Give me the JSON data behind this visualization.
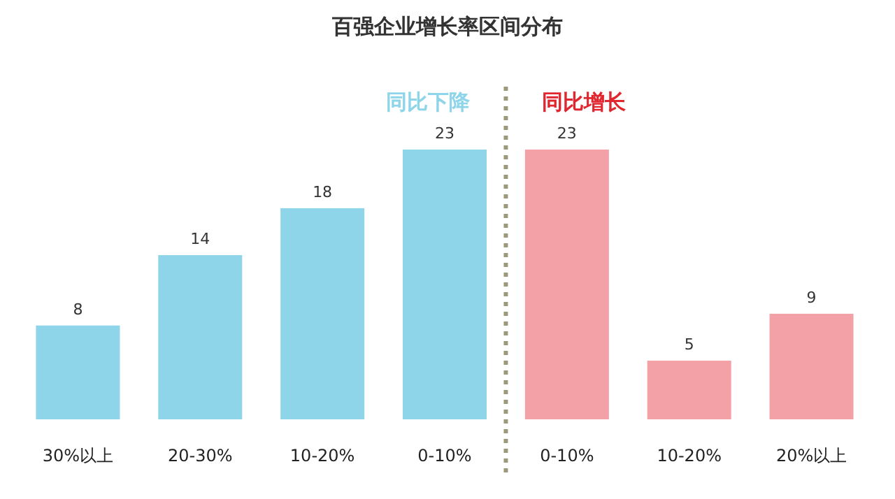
{
  "chart_data": {
    "type": "bar",
    "title": "百强企业增长率区间分布",
    "categories": [
      "30%以上",
      "20-30%",
      "10-20%",
      "0-10%",
      "0-10%",
      "10-20%",
      "20%以上"
    ],
    "series": [
      {
        "name": "同比下降",
        "color": "#8fd5ea",
        "values": [
          8,
          14,
          18,
          23,
          null,
          null,
          null
        ]
      },
      {
        "name": "同比增长",
        "color": "#f3a1a6",
        "values": [
          null,
          null,
          null,
          null,
          23,
          5,
          9
        ]
      }
    ],
    "data_labels": true
  }
}
